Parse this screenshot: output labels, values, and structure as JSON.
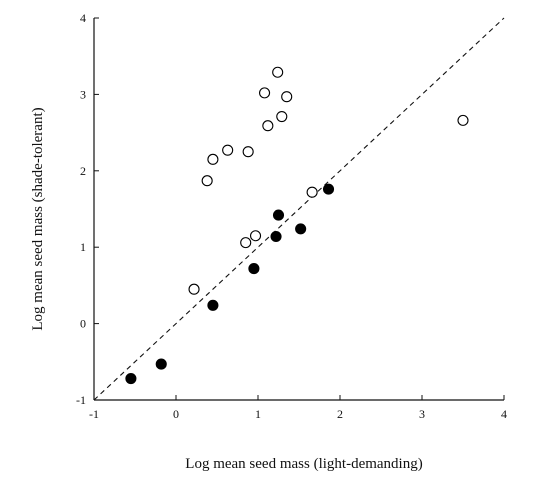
{
  "chart_data": {
    "type": "scatter",
    "xlabel": "Log mean seed mass (light-demanding)",
    "ylabel": "Log mean seed mass (shade-tolerant)",
    "xlim": [
      -1,
      4
    ],
    "ylim": [
      -1,
      4
    ],
    "xticks": [
      -1,
      0,
      1,
      2,
      3,
      4
    ],
    "yticks": [
      -1,
      0,
      1,
      2,
      3,
      4
    ],
    "xtick_labels": [
      "-1",
      "0",
      "1",
      "2",
      "3",
      "4"
    ],
    "ytick_labels": [
      "-1",
      "0",
      "1",
      "2",
      "3",
      "4"
    ],
    "reference_line": {
      "style": "dashed",
      "from": [
        -1,
        -1
      ],
      "to": [
        4,
        4
      ]
    },
    "grid": false,
    "series": [
      {
        "marker": "open-circle",
        "points": [
          {
            "x": 0.22,
            "y": 0.45
          },
          {
            "x": 0.38,
            "y": 1.87
          },
          {
            "x": 0.45,
            "y": 2.15
          },
          {
            "x": 0.63,
            "y": 2.27
          },
          {
            "x": 0.88,
            "y": 2.25
          },
          {
            "x": 0.85,
            "y": 1.06
          },
          {
            "x": 0.97,
            "y": 1.15
          },
          {
            "x": 1.08,
            "y": 3.02
          },
          {
            "x": 1.12,
            "y": 2.59
          },
          {
            "x": 1.24,
            "y": 3.29
          },
          {
            "x": 1.29,
            "y": 2.71
          },
          {
            "x": 1.35,
            "y": 2.97
          },
          {
            "x": 1.66,
            "y": 1.72
          },
          {
            "x": 3.5,
            "y": 2.66
          }
        ]
      },
      {
        "marker": "filled-circle",
        "points": [
          {
            "x": -0.55,
            "y": -0.72
          },
          {
            "x": -0.18,
            "y": -0.53
          },
          {
            "x": 0.45,
            "y": 0.24
          },
          {
            "x": 0.95,
            "y": 0.72
          },
          {
            "x": 1.22,
            "y": 1.14
          },
          {
            "x": 1.25,
            "y": 1.42
          },
          {
            "x": 1.52,
            "y": 1.24
          },
          {
            "x": 1.86,
            "y": 1.76
          }
        ]
      }
    ]
  }
}
